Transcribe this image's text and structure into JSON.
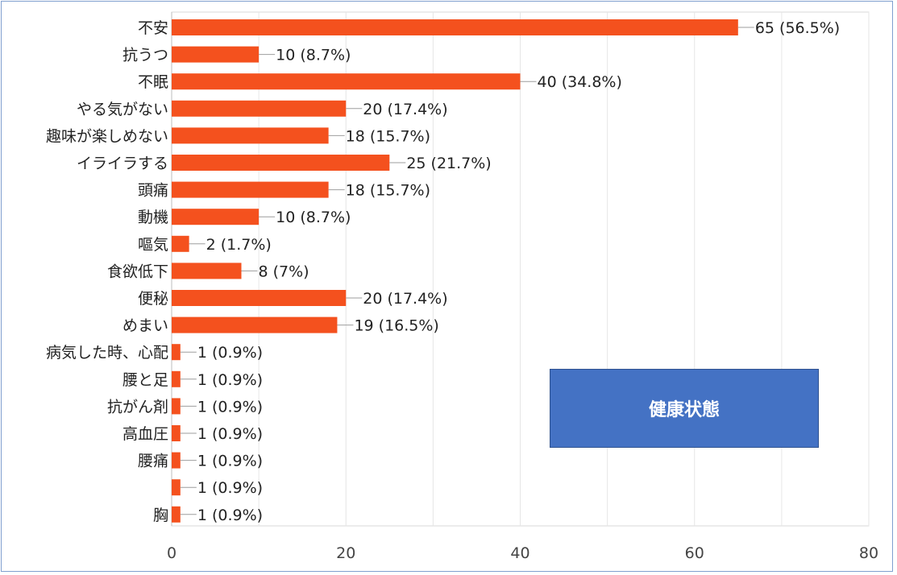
{
  "chart_data": {
    "type": "bar",
    "orientation": "horizontal",
    "categories": [
      "不安",
      "抗うつ",
      "不眠",
      "やる気がない",
      "趣味が楽しめない",
      "イライラする",
      "頭痛",
      "動機",
      "嘔気",
      "食欲低下",
      "便秘",
      "めまい",
      "病気した時、心配",
      "腰と足",
      "抗がん剤",
      "高血圧",
      "腰痛",
      "",
      "胸"
    ],
    "values": [
      65,
      10,
      40,
      20,
      18,
      25,
      18,
      10,
      2,
      8,
      20,
      19,
      1,
      1,
      1,
      1,
      1,
      1,
      1
    ],
    "data_labels": [
      "65 (56.5%)",
      "10 (8.7%)",
      "40 (34.8%)",
      "20 (17.4%)",
      "18 (15.7%)",
      "25 (21.7%)",
      "18 (15.7%)",
      "10 (8.7%)",
      "2 (1.7%)",
      "8 (7%)",
      "20 (17.4%)",
      "19 (16.5%)",
      "1 (0.9%)",
      "1 (0.9%)",
      "1 (0.9%)",
      "1 (0.9%)",
      "1 (0.9%)",
      "1 (0.9%)",
      "1 (0.9%)"
    ],
    "xlim": [
      0,
      80
    ],
    "xticks": [
      0,
      20,
      40,
      60,
      80
    ],
    "grid": true,
    "bar_color": "#f4511e",
    "annotation": "健康状態"
  }
}
